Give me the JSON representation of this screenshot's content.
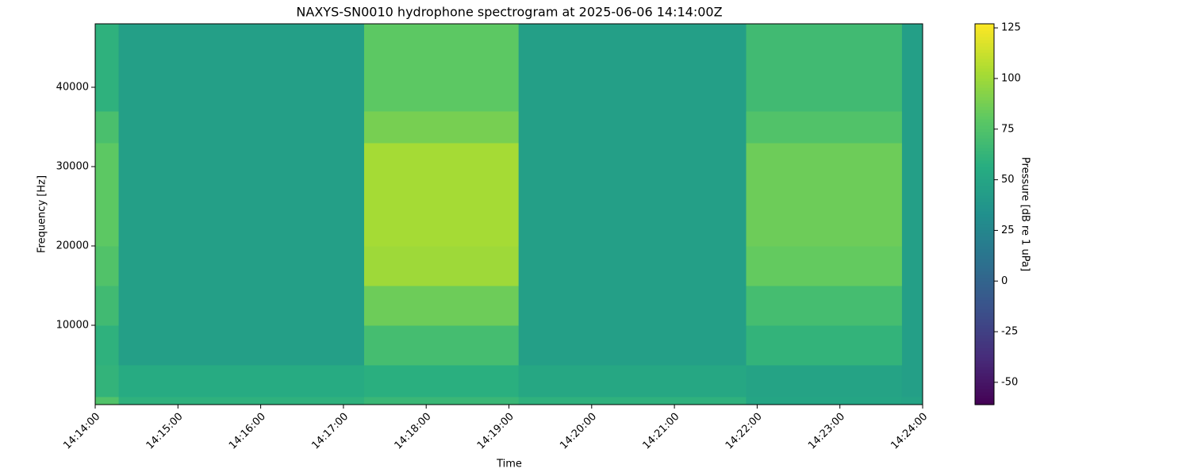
{
  "chart_data": {
    "type": "heatmap",
    "title": "NAXYS-SN0010 hydrophone spectrogram at 2025-06-06 14:14:00Z",
    "xlabel": "Time",
    "ylabel": "Frequency [Hz]",
    "colorbar_label": "Pressure [dB re 1 uPa]",
    "colormap": "viridis",
    "x_edges": [
      "14:14:00",
      "14:14:17",
      "14:17:15",
      "14:19:07",
      "14:21:52",
      "14:23:45",
      "14:24:00"
    ],
    "y_edges": [
      0,
      1000,
      5000,
      10000,
      15000,
      20000,
      33000,
      37000,
      48000
    ],
    "values": [
      [
        75,
        60,
        65,
        60,
        50,
        48
      ],
      [
        62,
        55,
        58,
        52,
        48,
        45
      ],
      [
        60,
        45,
        70,
        45,
        62,
        45
      ],
      [
        68,
        45,
        85,
        45,
        70,
        45
      ],
      [
        75,
        45,
        100,
        45,
        82,
        45
      ],
      [
        80,
        45,
        102,
        45,
        85,
        45
      ],
      [
        72,
        45,
        88,
        45,
        75,
        45
      ],
      [
        60,
        45,
        80,
        45,
        68,
        45
      ]
    ],
    "xlim": [
      "14:14:00",
      "14:24:00"
    ],
    "xticks": [
      "14:14:00",
      "14:15:00",
      "14:16:00",
      "14:17:00",
      "14:18:00",
      "14:19:00",
      "14:20:00",
      "14:21:00",
      "14:22:00",
      "14:23:00",
      "14:24:00"
    ],
    "ylim": [
      0,
      48000
    ],
    "yticks": [
      10000,
      20000,
      30000,
      40000
    ],
    "clim": [
      -61,
      127
    ],
    "cticks": [
      -50,
      -25,
      0,
      25,
      50,
      75,
      100,
      125
    ]
  }
}
